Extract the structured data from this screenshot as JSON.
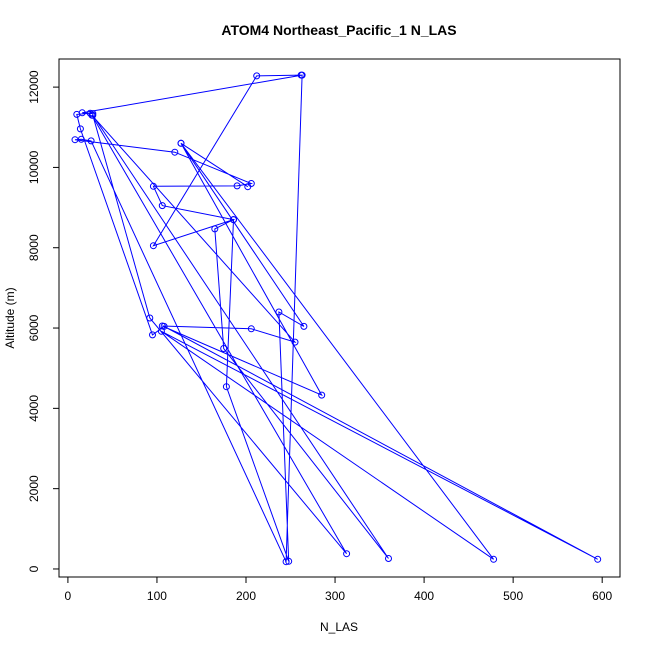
{
  "chart_data": {
    "type": "line",
    "title": "ATOM4 Northeast_Pacific_1 N_LAS",
    "xlabel": "N_LAS",
    "ylabel": "Altitude (m)",
    "xlim": [
      -10,
      620
    ],
    "ylim": [
      -200,
      12700
    ],
    "xticks": [
      0,
      100,
      200,
      300,
      400,
      500,
      600
    ],
    "yticks": [
      0,
      2000,
      4000,
      6000,
      8000,
      10000,
      12000
    ],
    "grid": false,
    "series": [
      {
        "color": "#0000ff",
        "marker": "open-circle",
        "points": [
          [
            262,
            12300
          ],
          [
            212,
            12280
          ],
          [
            96,
            8050
          ],
          [
            186,
            8700
          ],
          [
            106,
            9050
          ],
          [
            96,
            9530
          ],
          [
            190,
            9540
          ],
          [
            206,
            9600
          ],
          [
            120,
            10380
          ],
          [
            8,
            10690
          ],
          [
            15,
            10700
          ],
          [
            26,
            10660
          ],
          [
            245,
            180
          ],
          [
            263,
            12300
          ],
          [
            16,
            11360
          ],
          [
            28,
            11340
          ],
          [
            25,
            11350
          ],
          [
            10,
            11320
          ],
          [
            14,
            10960
          ],
          [
            95,
            5830
          ],
          [
            108,
            6040
          ],
          [
            595,
            240
          ],
          [
            105,
            5920
          ],
          [
            478,
            240
          ],
          [
            127,
            10600
          ],
          [
            265,
            6040
          ],
          [
            237,
            6400
          ],
          [
            248,
            190
          ],
          [
            178,
            4540
          ],
          [
            186,
            8700
          ],
          [
            165,
            8470
          ],
          [
            175,
            5490
          ],
          [
            360,
            260
          ],
          [
            28,
            11300
          ],
          [
            92,
            6250
          ],
          [
            313,
            380
          ],
          [
            27,
            11300
          ],
          [
            255,
            5650
          ],
          [
            206,
            5980
          ],
          [
            106,
            6050
          ],
          [
            285,
            4330
          ],
          [
            127,
            10600
          ],
          [
            202,
            9520
          ]
        ]
      }
    ]
  }
}
